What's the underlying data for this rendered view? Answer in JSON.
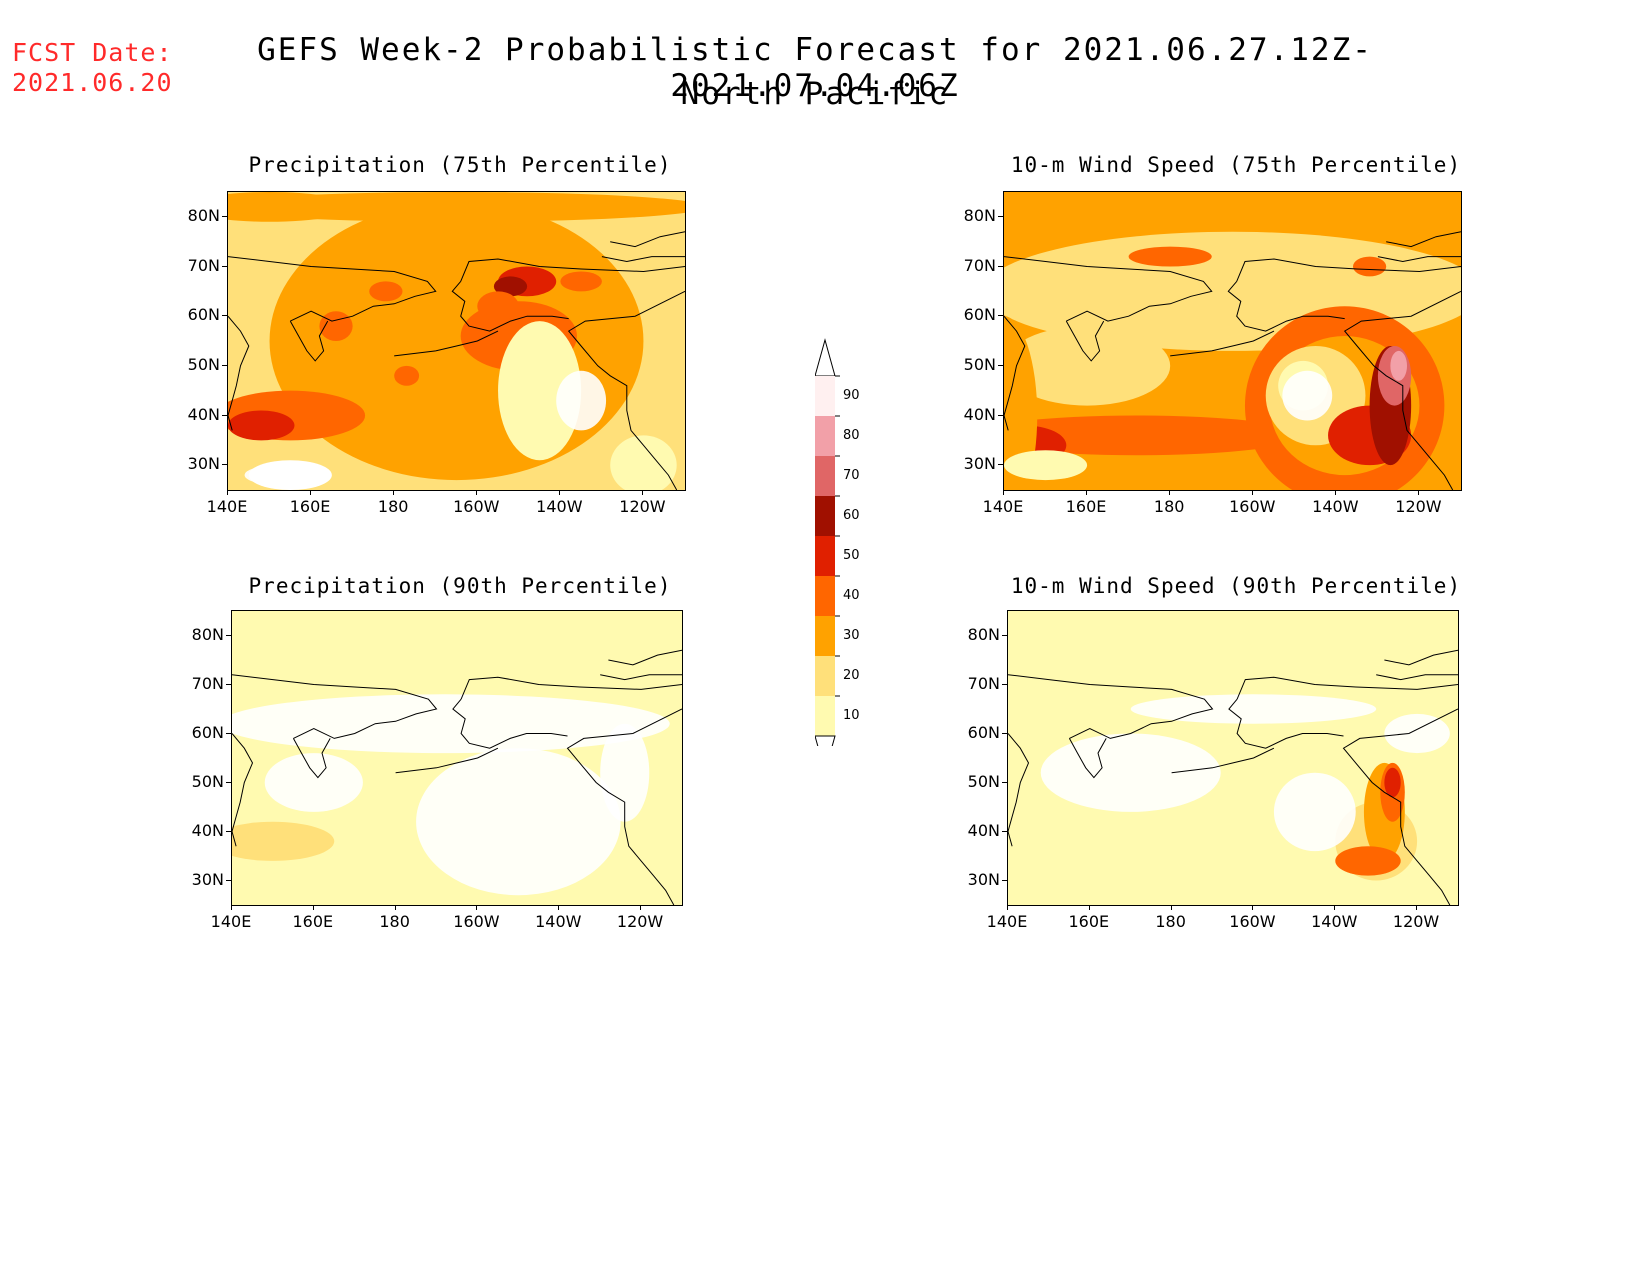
{
  "header": {
    "fcst_label": "FCST Date:",
    "fcst_date": "2021.06.20",
    "title": "GEFS Week-2 Probabilistic Forecast for 2021.06.27.12Z-2021.07.04.06Z",
    "subtitle": "North Pacific"
  },
  "axes": {
    "x_ticks": [
      "140E",
      "160E",
      "180",
      "160W",
      "140W",
      "120W"
    ],
    "y_ticks": [
      "80N",
      "70N",
      "60N",
      "50N",
      "40N",
      "30N"
    ]
  },
  "panels": [
    {
      "title": "Precipitation (75th Percentile)",
      "background_level": 20
    },
    {
      "title": "10-m Wind Speed (75th Percentile)",
      "background_level": 30
    },
    {
      "title": "Precipitation (90th Percentile)",
      "background_level": 10
    },
    {
      "title": "10-m Wind Speed (90th Percentile)",
      "background_level": 10
    }
  ],
  "colorbar": {
    "levels": [
      "90",
      "80",
      "70",
      "60",
      "50",
      "40",
      "30",
      "20",
      "10"
    ],
    "colors": [
      "#fff0f0",
      "#f2a0a8",
      "#e06666",
      "#a01000",
      "#e02000",
      "#ff6600",
      "#ffa200",
      "#ffe07a",
      "#fffab0"
    ]
  },
  "colors": {
    "fcst": "#ff2a2a",
    "land_outline": "#000000"
  }
}
